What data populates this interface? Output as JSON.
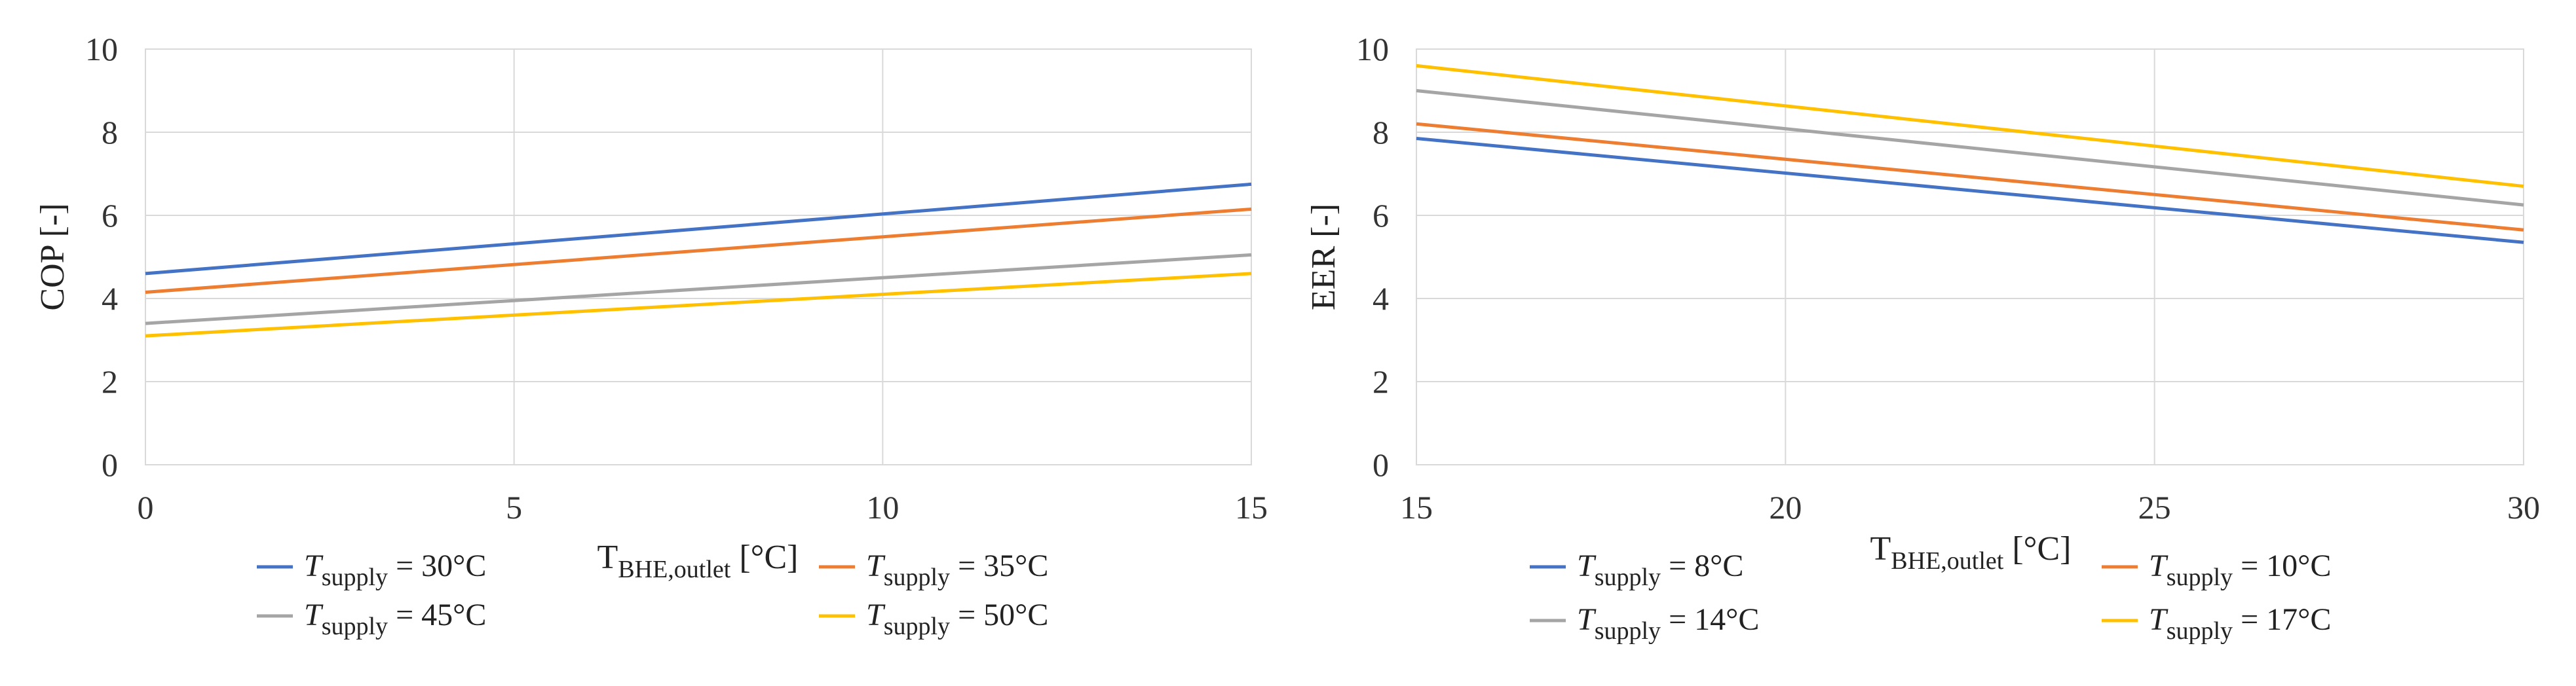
{
  "chart_data": [
    {
      "type": "line",
      "title": "",
      "xlabel": {
        "main": "T",
        "sub": "BHE,outlet",
        "unit": " [°C]"
      },
      "ylabel": "COP [-]",
      "xlim": [
        0,
        15
      ],
      "ylim": [
        0,
        10
      ],
      "xticks": [
        "0",
        "5",
        "10",
        "15"
      ],
      "yticks": [
        "0",
        "2",
        "4",
        "6",
        "8",
        "10"
      ],
      "grid": true,
      "legend": "bottom",
      "x": [
        0,
        15
      ],
      "series": [
        {
          "name": {
            "var": "T",
            "sub": "supply",
            "val": " = 30°C"
          },
          "color": "#4472C4",
          "values": [
            4.6,
            6.75
          ]
        },
        {
          "name": {
            "var": "T",
            "sub": "supply",
            "val": " = 35°C"
          },
          "color": "#ED7D31",
          "values": [
            4.15,
            6.15
          ]
        },
        {
          "name": {
            "var": "T",
            "sub": "supply",
            "val": " = 45°C"
          },
          "color": "#A5A5A5",
          "values": [
            3.4,
            5.05
          ]
        },
        {
          "name": {
            "var": "T",
            "sub": "supply",
            "val": " = 50°C"
          },
          "color": "#FFC000",
          "values": [
            3.1,
            4.6
          ]
        }
      ]
    },
    {
      "type": "line",
      "title": "",
      "xlabel": {
        "main": "T",
        "sub": "BHE,outlet",
        "unit": " [°C]"
      },
      "ylabel": "EER [-]",
      "xlim": [
        15,
        30
      ],
      "ylim": [
        0,
        10
      ],
      "xticks": [
        "15",
        "20",
        "25",
        "30"
      ],
      "yticks": [
        "0",
        "2",
        "4",
        "6",
        "8",
        "10"
      ],
      "grid": true,
      "legend": "bottom",
      "x": [
        15,
        30
      ],
      "series": [
        {
          "name": {
            "var": "T",
            "sub": "supply",
            "val": " = 8°C"
          },
          "color": "#4472C4",
          "values": [
            7.85,
            5.35
          ]
        },
        {
          "name": {
            "var": "T",
            "sub": "supply",
            "val": " = 10°C"
          },
          "color": "#ED7D31",
          "values": [
            8.2,
            5.65
          ]
        },
        {
          "name": {
            "var": "T",
            "sub": "supply",
            "val": " = 14°C"
          },
          "color": "#A5A5A5",
          "values": [
            9.0,
            6.25
          ]
        },
        {
          "name": {
            "var": "T",
            "sub": "supply",
            "val": " = 17°C"
          },
          "color": "#FFC000",
          "values": [
            9.6,
            6.7
          ]
        }
      ]
    }
  ]
}
